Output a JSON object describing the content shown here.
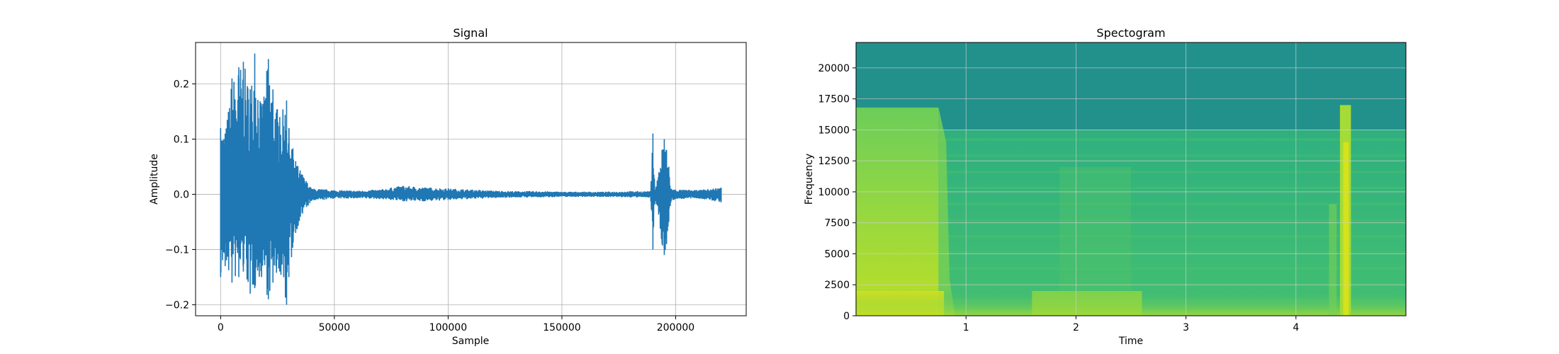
{
  "chart_data": [
    {
      "type": "line",
      "title": "Signal",
      "xlabel": "Sample",
      "ylabel": "Amplitude",
      "xlim": [
        -11000,
        231000
      ],
      "ylim": [
        -0.22,
        0.275
      ],
      "xticks": [
        0,
        50000,
        100000,
        150000,
        200000
      ],
      "xtick_labels": [
        "0",
        "50000",
        "100000",
        "150000",
        "200000"
      ],
      "yticks": [
        -0.2,
        -0.1,
        0.0,
        0.1,
        0.2
      ],
      "ytick_labels": [
        "−0.2",
        "−0.1",
        "0.0",
        "0.1",
        "0.2"
      ],
      "grid": true,
      "line_color": "#1f77b4",
      "series": [
        {
          "x": [
            0,
            2000,
            5000,
            8000,
            10000,
            13000,
            15000,
            18000,
            21000,
            23000,
            26000,
            29000,
            30000,
            33000,
            36000,
            40000,
            50000,
            60000,
            70000,
            80000,
            90000,
            100000,
            110000,
            120000,
            130000,
            140000,
            150000,
            160000,
            170000,
            180000,
            189000,
            190000,
            191000,
            194000,
            195000,
            196000,
            197000,
            198000,
            200000,
            210000,
            220000
          ],
          "upper": [
            0.12,
            0.11,
            0.21,
            0.23,
            0.24,
            0.19,
            0.255,
            0.16,
            0.245,
            0.19,
            0.14,
            0.17,
            0.12,
            0.06,
            0.035,
            0.01,
            0.007,
            0.006,
            0.008,
            0.015,
            0.012,
            0.01,
            0.008,
            0.006,
            0.005,
            0.005,
            0.004,
            0.004,
            0.004,
            0.005,
            0.005,
            0.11,
            0.005,
            0.08,
            0.1,
            0.08,
            0.05,
            0.01,
            0.008,
            0.007,
            0.012
          ],
          "lower": [
            -0.15,
            -0.13,
            -0.16,
            -0.15,
            -0.14,
            -0.18,
            -0.17,
            -0.15,
            -0.19,
            -0.16,
            -0.14,
            -0.2,
            -0.15,
            -0.07,
            -0.035,
            -0.012,
            -0.007,
            -0.007,
            -0.008,
            -0.012,
            -0.012,
            -0.01,
            -0.008,
            -0.006,
            -0.005,
            -0.005,
            -0.004,
            -0.004,
            -0.004,
            -0.005,
            -0.005,
            -0.1,
            -0.005,
            -0.09,
            -0.11,
            -0.09,
            -0.05,
            -0.012,
            -0.008,
            -0.007,
            -0.014
          ]
        }
      ]
    },
    {
      "type": "heatmap",
      "title": "Spectogram",
      "xlabel": "Time",
      "ylabel": "Frequency",
      "xlim": [
        0,
        5.0
      ],
      "ylim": [
        0,
        22050
      ],
      "xticks": [
        1,
        2,
        3,
        4
      ],
      "xtick_labels": [
        "1",
        "2",
        "3",
        "4"
      ],
      "yticks": [
        0,
        2500,
        5000,
        7500,
        10000,
        12500,
        15000,
        17500,
        20000
      ],
      "ytick_labels": [
        "0",
        "2500",
        "5000",
        "7500",
        "10000",
        "12500",
        "15000",
        "17500",
        "20000"
      ],
      "grid": true,
      "colormap": "viridis",
      "colors": {
        "background": "#22918c",
        "mid": "#2fb07f",
        "bright": "#a5db36",
        "peak": "#dde318"
      },
      "regions": [
        {
          "t": [
            0.0,
            0.75
          ],
          "f": [
            0,
            16800
          ],
          "level": 0.72
        },
        {
          "t": [
            0.0,
            0.8
          ],
          "f": [
            0,
            2000
          ],
          "level": 0.95
        },
        {
          "t": [
            0.75,
            5.0
          ],
          "f": [
            0,
            15000
          ],
          "level": 0.45
        },
        {
          "t": [
            1.6,
            2.6
          ],
          "f": [
            0,
            2000
          ],
          "level": 0.7
        },
        {
          "t": [
            4.4,
            4.5
          ],
          "f": [
            0,
            17000
          ],
          "level": 0.92
        }
      ]
    }
  ]
}
